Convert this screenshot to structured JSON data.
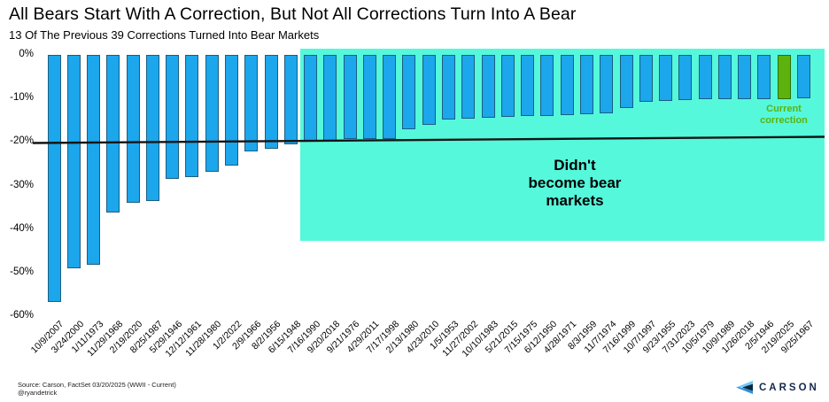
{
  "header": {
    "title": "All Bears Start With A Correction, But Not All Corrections Turn Into A Bear",
    "subtitle": "13 Of The Previous 39 Corrections Turned Into Bear Markets"
  },
  "chart_data": {
    "type": "bar",
    "title": "All Bears Start With A Correction, But Not All Corrections Turn Into A Bear",
    "subtitle": "13 Of The Previous 39 Corrections Turned Into Bear Markets",
    "xlabel": "",
    "ylabel": "",
    "ylim": [
      -60,
      0
    ],
    "grid": false,
    "legend": "none",
    "yticks": [
      "0%",
      "-10%",
      "-20%",
      "-30%",
      "-40%",
      "-50%",
      "-60%"
    ],
    "categories": [
      "10/9/2007",
      "3/24/2000",
      "1/11/1973",
      "11/29/1968",
      "2/19/2020",
      "8/25/1987",
      "5/29/1946",
      "12/12/1961",
      "11/28/1980",
      "1/2/2022",
      "2/9/1966",
      "8/2/1956",
      "6/15/1948",
      "7/16/1990",
      "9/20/2018",
      "9/21/1976",
      "4/29/2011",
      "7/17/1998",
      "2/13/1980",
      "4/23/2010",
      "1/5/1953",
      "11/27/2002",
      "10/10/1983",
      "5/21/2015",
      "7/15/1975",
      "6/12/1950",
      "4/28/1971",
      "8/3/1959",
      "11/7/1974",
      "7/16/1999",
      "10/7/1997",
      "9/23/1955",
      "7/31/2023",
      "10/5/1979",
      "10/9/1989",
      "1/26/2018",
      "2/5/1946",
      "2/19/2025",
      "9/25/1967"
    ],
    "values": [
      -56.8,
      -49.1,
      -48.2,
      -36.1,
      -33.9,
      -33.5,
      -28.4,
      -28.0,
      -26.9,
      -25.4,
      -22.2,
      -21.6,
      -20.6,
      -19.9,
      -19.8,
      -19.4,
      -19.4,
      -19.3,
      -17.1,
      -16.0,
      -14.8,
      -14.7,
      -14.4,
      -14.2,
      -14.1,
      -14.0,
      -13.9,
      -13.6,
      -13.5,
      -12.1,
      -10.8,
      -10.6,
      -10.3,
      -10.2,
      -10.2,
      -10.2,
      -10.2,
      -10.1,
      -10.0
    ],
    "bar_color": "#1ca6ec",
    "bar_border_color": "#1b5e80",
    "highlight_index": 37,
    "highlight_color": "#5cb30e",
    "highlight_border_color": "#2f6e08",
    "threshold_line": {
      "value": -20,
      "color": "#141414"
    },
    "shaded_region": {
      "label_lines": [
        "Didn't",
        "become bear",
        "markets"
      ],
      "covers_categories_from": "7/16/1990",
      "covers_categories_to": "9/25/1967",
      "color": "#55f8db"
    },
    "annotations": [
      {
        "text_lines": [
          "Current",
          "correction"
        ],
        "color": "#5cb30e",
        "target": "2/19/2025"
      }
    ]
  },
  "footer": {
    "source_line1": "Source: Carson, FactSet 03/20/2025 (WWII - Current)",
    "source_line2": "@ryandetrick",
    "logo_text": "CARSON"
  }
}
